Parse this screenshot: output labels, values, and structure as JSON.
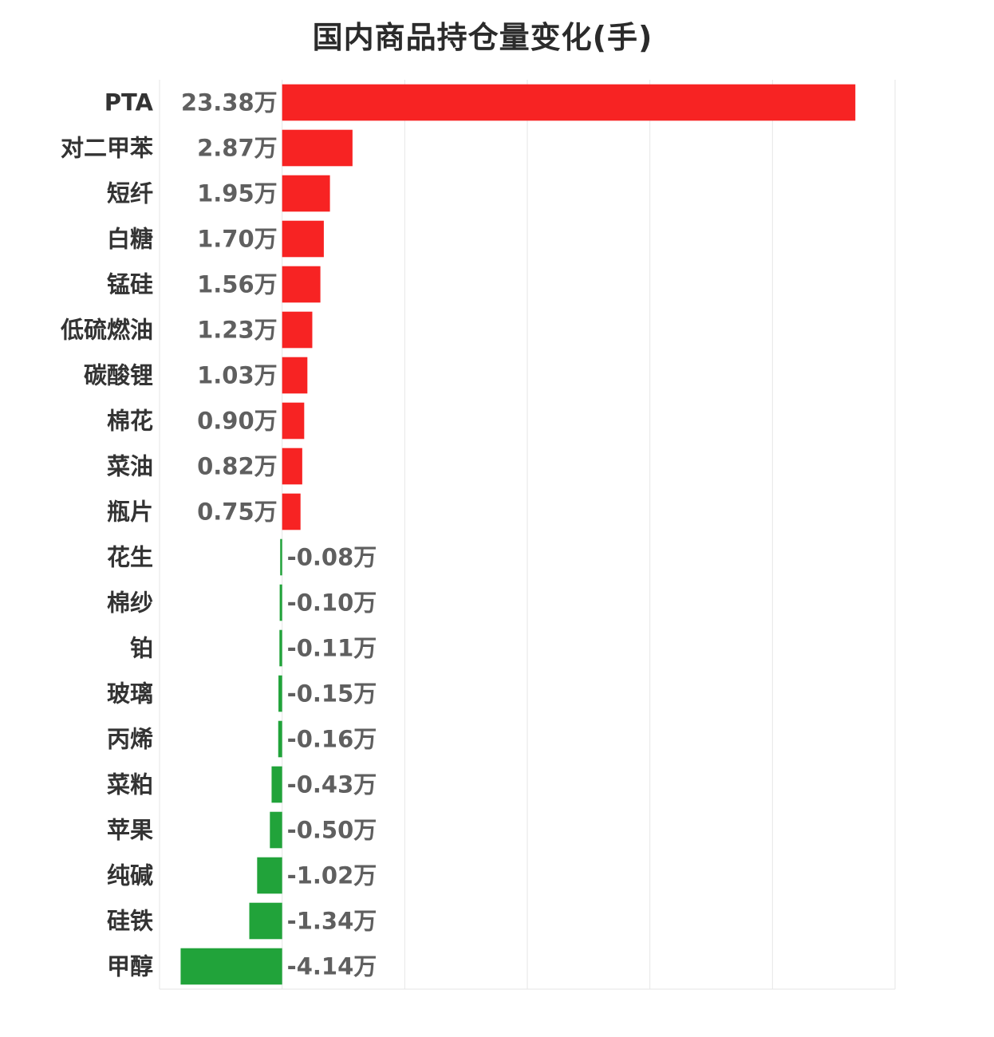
{
  "chart_data": {
    "type": "bar",
    "orientation": "horizontal",
    "title": "国内商品持仓量变化(手)",
    "unit_suffix": "万",
    "categories": [
      "PTA",
      "对二甲苯",
      "短纤",
      "白糖",
      "锰硅",
      "低硫燃油",
      "碳酸锂",
      "棉花",
      "菜油",
      "瓶片",
      "花生",
      "棉纱",
      "铂",
      "玻璃",
      "丙烯",
      "菜粕",
      "苹果",
      "纯碱",
      "硅铁",
      "甲醇"
    ],
    "values": [
      23.38,
      2.87,
      1.95,
      1.7,
      1.56,
      1.23,
      1.03,
      0.9,
      0.82,
      0.75,
      -0.08,
      -0.1,
      -0.11,
      -0.15,
      -0.16,
      -0.43,
      -0.5,
      -1.02,
      -1.34,
      -4.14
    ],
    "value_labels": [
      "23.38万",
      "2.87万",
      "1.95万",
      "1.70万",
      "1.56万",
      "1.23万",
      "1.03万",
      "0.90万",
      "0.82万",
      "0.75万",
      "-0.08万",
      "-0.10万",
      "-0.11万",
      "-0.15万",
      "-0.16万",
      "-0.43万",
      "-0.50万",
      "-1.02万",
      "-1.34万",
      "-4.14万"
    ],
    "xlim": [
      -5,
      25
    ],
    "grid": true,
    "colors": {
      "positive": "#f72323",
      "negative": "#21a33a",
      "grid": "#e6e6e6",
      "category_text": "#333333",
      "value_text": "#5f5f5f"
    }
  }
}
